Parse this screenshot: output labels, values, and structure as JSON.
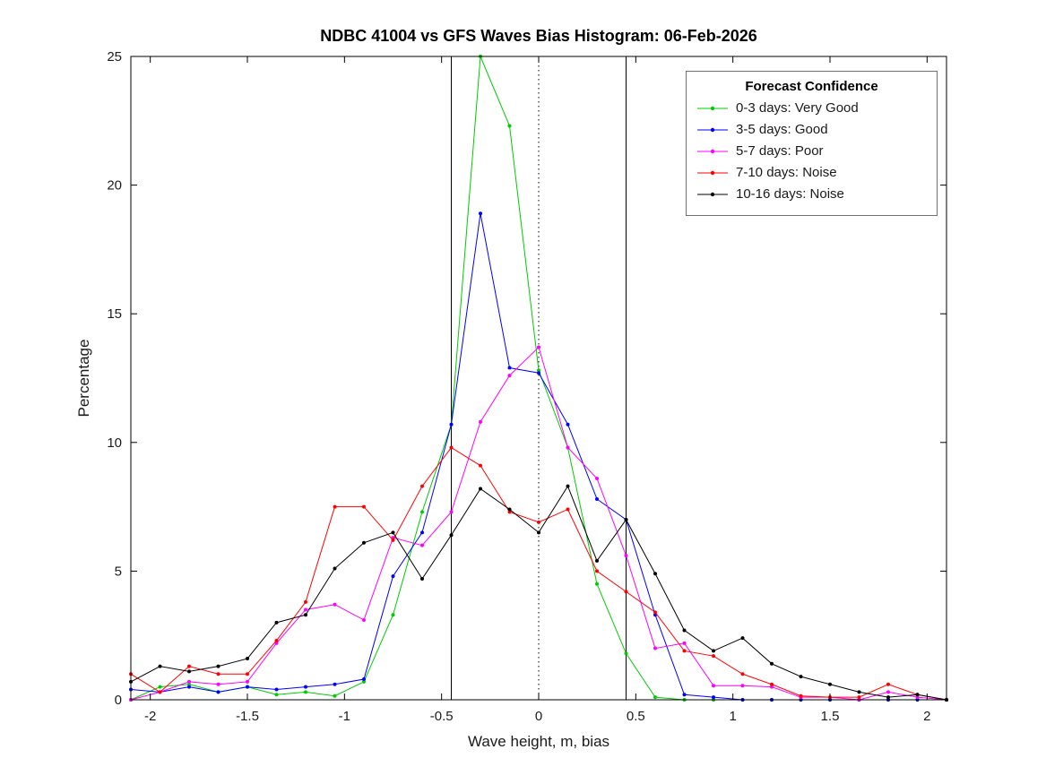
{
  "figure": {
    "background": "#ffffff"
  },
  "chart_data": {
    "type": "line",
    "title": "NDBC 41004 vs GFS Waves Bias Histogram: 06-Feb-2026",
    "xlabel": "Wave height, m, bias",
    "ylabel": "Percentage",
    "xlim": [
      -2.1,
      2.1
    ],
    "ylim": [
      0,
      25
    ],
    "xticks": [
      -2,
      -1.5,
      -1,
      -0.5,
      0,
      0.5,
      1,
      1.5,
      2
    ],
    "yticks": [
      0,
      5,
      10,
      15,
      20,
      25
    ],
    "grid": false,
    "legend": {
      "title": "Forecast Confidence",
      "position": "top-right"
    },
    "x": [
      -2.1,
      -1.95,
      -1.8,
      -1.65,
      -1.5,
      -1.35,
      -1.2,
      -1.05,
      -0.9,
      -0.75,
      -0.6,
      -0.45,
      -0.3,
      -0.15,
      0,
      0.15,
      0.3,
      0.45,
      0.6,
      0.75,
      0.9,
      1.05,
      1.2,
      1.35,
      1.5,
      1.65,
      1.8,
      1.95,
      2.1
    ],
    "series": [
      {
        "name": "0-3 days: Very Good",
        "color": "#00cc00",
        "values": [
          0,
          0.5,
          0.6,
          0.3,
          0.5,
          0.2,
          0.3,
          0.15,
          0.7,
          3.3,
          7.3,
          10.7,
          25,
          22.3,
          12.8,
          9.8,
          4.5,
          1.8,
          0.1,
          0,
          0,
          0,
          0,
          0,
          0,
          0,
          0,
          0,
          0
        ]
      },
      {
        "name": "3-5 days: Good",
        "color": "#0000ff",
        "values": [
          0.4,
          0.3,
          0.5,
          0.3,
          0.5,
          0.4,
          0.5,
          0.6,
          0.8,
          4.8,
          6.5,
          10.7,
          18.9,
          12.9,
          12.7,
          10.7,
          7.8,
          7.0,
          3.3,
          0.2,
          0.1,
          0,
          0,
          0,
          0,
          0,
          0,
          0,
          0
        ]
      },
      {
        "name": "5-7 days: Poor",
        "color": "#ff00ff",
        "values": [
          0,
          0.3,
          0.7,
          0.6,
          0.7,
          2.2,
          3.5,
          3.7,
          3.1,
          6.3,
          6.0,
          7.3,
          10.8,
          12.6,
          13.7,
          9.8,
          8.6,
          5.6,
          2.0,
          2.2,
          0.55,
          0.55,
          0.5,
          0.1,
          0.1,
          0,
          0.3,
          0.1,
          0
        ]
      },
      {
        "name": "7-10 days: Noise",
        "color": "#ff0000",
        "values": [
          1.0,
          0.3,
          1.3,
          1.0,
          1.0,
          2.3,
          3.8,
          7.5,
          7.5,
          6.2,
          8.3,
          9.8,
          9.1,
          7.3,
          6.9,
          7.4,
          5.0,
          4.2,
          3.4,
          1.9,
          1.7,
          1.0,
          0.6,
          0.15,
          0.1,
          0.1,
          0.6,
          0.2,
          0
        ]
      },
      {
        "name": "10-16 days: Noise",
        "color": "#000000",
        "values": [
          0.7,
          1.3,
          1.1,
          1.3,
          1.6,
          3.0,
          3.3,
          5.1,
          6.1,
          6.5,
          4.7,
          6.4,
          8.2,
          7.4,
          6.5,
          8.3,
          5.4,
          7.0,
          4.9,
          2.7,
          1.9,
          2.4,
          1.4,
          0.9,
          0.6,
          0.3,
          0.1,
          0.2,
          0
        ]
      }
    ],
    "reference_lines": [
      {
        "x": -0.45,
        "style": "solid",
        "color": "#000000"
      },
      {
        "x": 0,
        "style": "dotted",
        "color": "#000000"
      },
      {
        "x": 0.45,
        "style": "solid",
        "color": "#000000"
      }
    ]
  }
}
